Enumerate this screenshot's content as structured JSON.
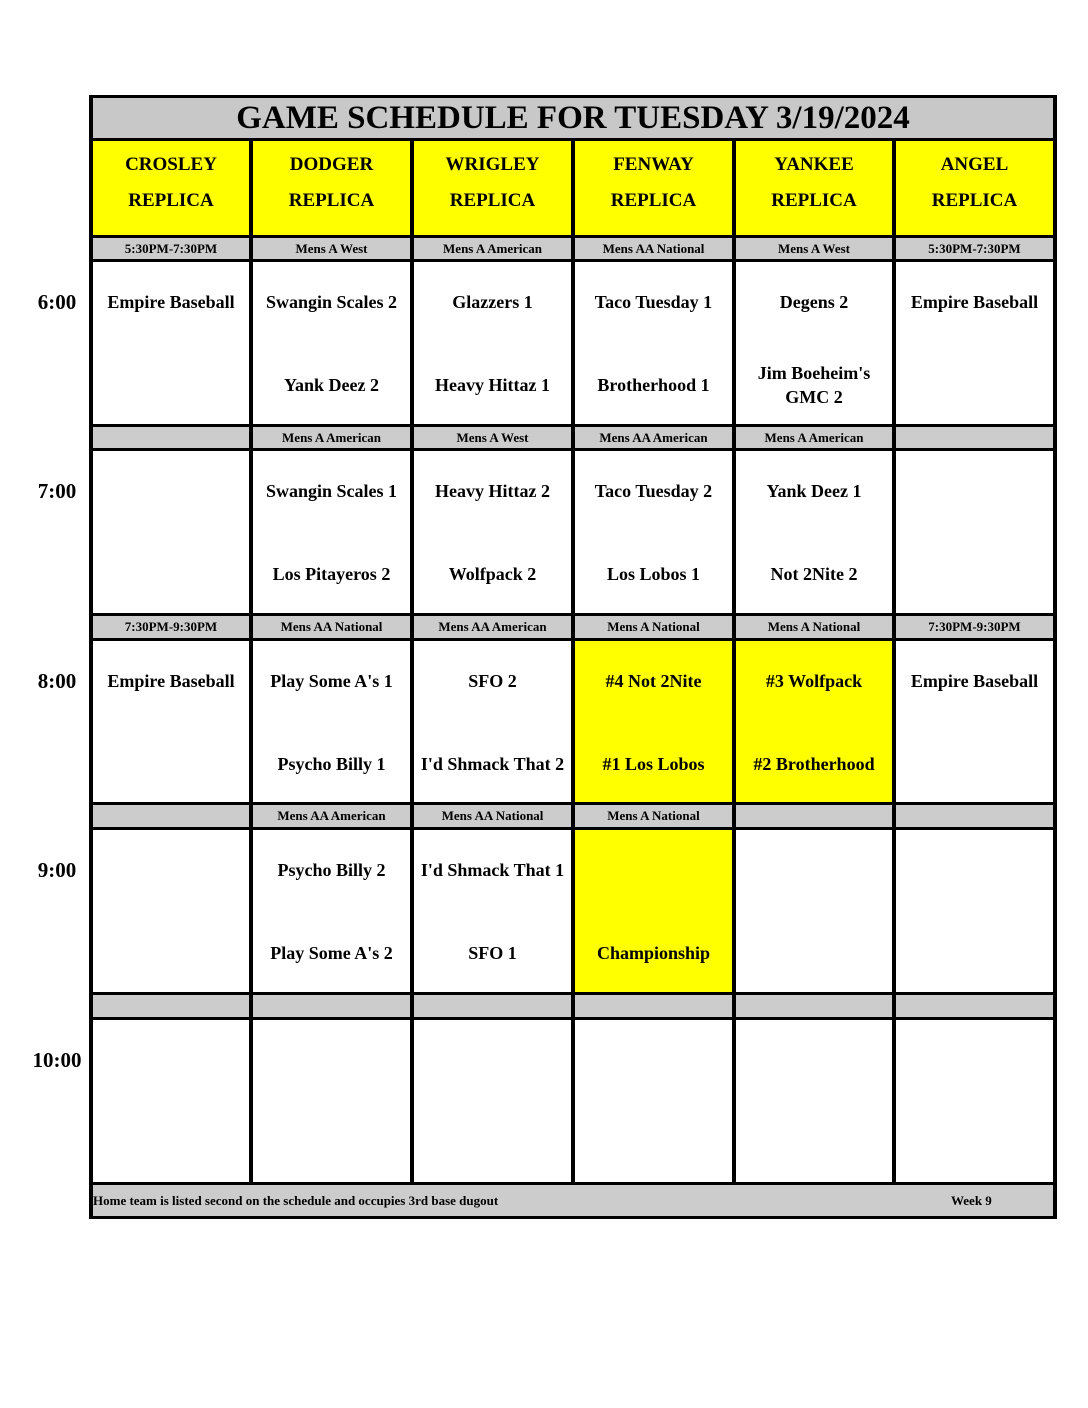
{
  "title": "GAME SCHEDULE FOR TUESDAY 3/19/2024",
  "fields": [
    {
      "name": "CROSLEY",
      "sub": "REPLICA"
    },
    {
      "name": "DODGER",
      "sub": "REPLICA"
    },
    {
      "name": "WRIGLEY",
      "sub": "REPLICA"
    },
    {
      "name": "FENWAY",
      "sub": "REPLICA"
    },
    {
      "name": "YANKEE",
      "sub": "REPLICA"
    },
    {
      "name": "ANGEL",
      "sub": "REPLICA"
    }
  ],
  "highlight_color": "#ffff00",
  "slots": [
    {
      "time": "6:00",
      "labels": [
        "5:30PM-7:30PM",
        "Mens A West",
        "Mens A American",
        "Mens AA National",
        "Mens A West",
        "5:30PM-7:30PM"
      ],
      "games": [
        {
          "top": "Empire Baseball",
          "bottom": ""
        },
        {
          "top": "Swangin Scales 2",
          "bottom": "Yank Deez 2"
        },
        {
          "top": "Glazzers 1",
          "bottom": "Heavy Hittaz 1"
        },
        {
          "top": "Taco Tuesday 1",
          "bottom": "Brotherhood 1"
        },
        {
          "top": "Degens 2",
          "bottom": "Jim Boeheim's GMC 2"
        },
        {
          "top": "Empire Baseball",
          "bottom": ""
        }
      ]
    },
    {
      "time": "7:00",
      "labels": [
        "",
        "Mens A American",
        "Mens A West",
        "Mens AA American",
        "Mens A American",
        ""
      ],
      "games": [
        {
          "top": "",
          "bottom": ""
        },
        {
          "top": "Swangin Scales 1",
          "bottom": "Los Pitayeros 2"
        },
        {
          "top": "Heavy Hittaz 2",
          "bottom": "Wolfpack 2"
        },
        {
          "top": "Taco Tuesday 2",
          "bottom": "Los Lobos 1"
        },
        {
          "top": "Yank Deez 1",
          "bottom": "Not 2Nite 2"
        },
        {
          "top": "",
          "bottom": ""
        }
      ]
    },
    {
      "time": "8:00",
      "labels": [
        "7:30PM-9:30PM",
        "Mens AA National",
        "Mens AA American",
        "Mens A National",
        "Mens A National",
        "7:30PM-9:30PM"
      ],
      "games": [
        {
          "top": "Empire Baseball",
          "bottom": ""
        },
        {
          "top": "Play Some A's 1",
          "bottom": "Psycho Billy 1"
        },
        {
          "top": "SFO 2",
          "bottom": "I'd Shmack That 2"
        },
        {
          "top": "#4 Not 2Nite",
          "bottom": "#1 Los Lobos",
          "highlight": true
        },
        {
          "top": "#3 Wolfpack",
          "bottom": "#2 Brotherhood",
          "highlight": true
        },
        {
          "top": "Empire Baseball",
          "bottom": ""
        }
      ]
    },
    {
      "time": "9:00",
      "labels": [
        "",
        "Mens AA American",
        "Mens AA National",
        "Mens A National",
        "",
        ""
      ],
      "games": [
        {
          "top": "",
          "bottom": ""
        },
        {
          "top": "Psycho Billy 2",
          "bottom": "Play Some A's 2"
        },
        {
          "top": "I'd Shmack That 1",
          "bottom": "SFO 1"
        },
        {
          "top": "",
          "bottom": "Championship",
          "highlight": true
        },
        {
          "top": "",
          "bottom": ""
        },
        {
          "top": "",
          "bottom": ""
        }
      ]
    },
    {
      "time": "10:00",
      "labels": [
        "",
        "",
        "",
        "",
        "",
        ""
      ],
      "games": [
        {
          "top": "",
          "bottom": ""
        },
        {
          "top": "",
          "bottom": ""
        },
        {
          "top": "",
          "bottom": ""
        },
        {
          "top": "",
          "bottom": ""
        },
        {
          "top": "",
          "bottom": ""
        },
        {
          "top": "",
          "bottom": ""
        }
      ]
    }
  ],
  "footer": {
    "note": "Home team is listed second on the schedule and occupies 3rd base dugout",
    "week": "Week 9"
  }
}
